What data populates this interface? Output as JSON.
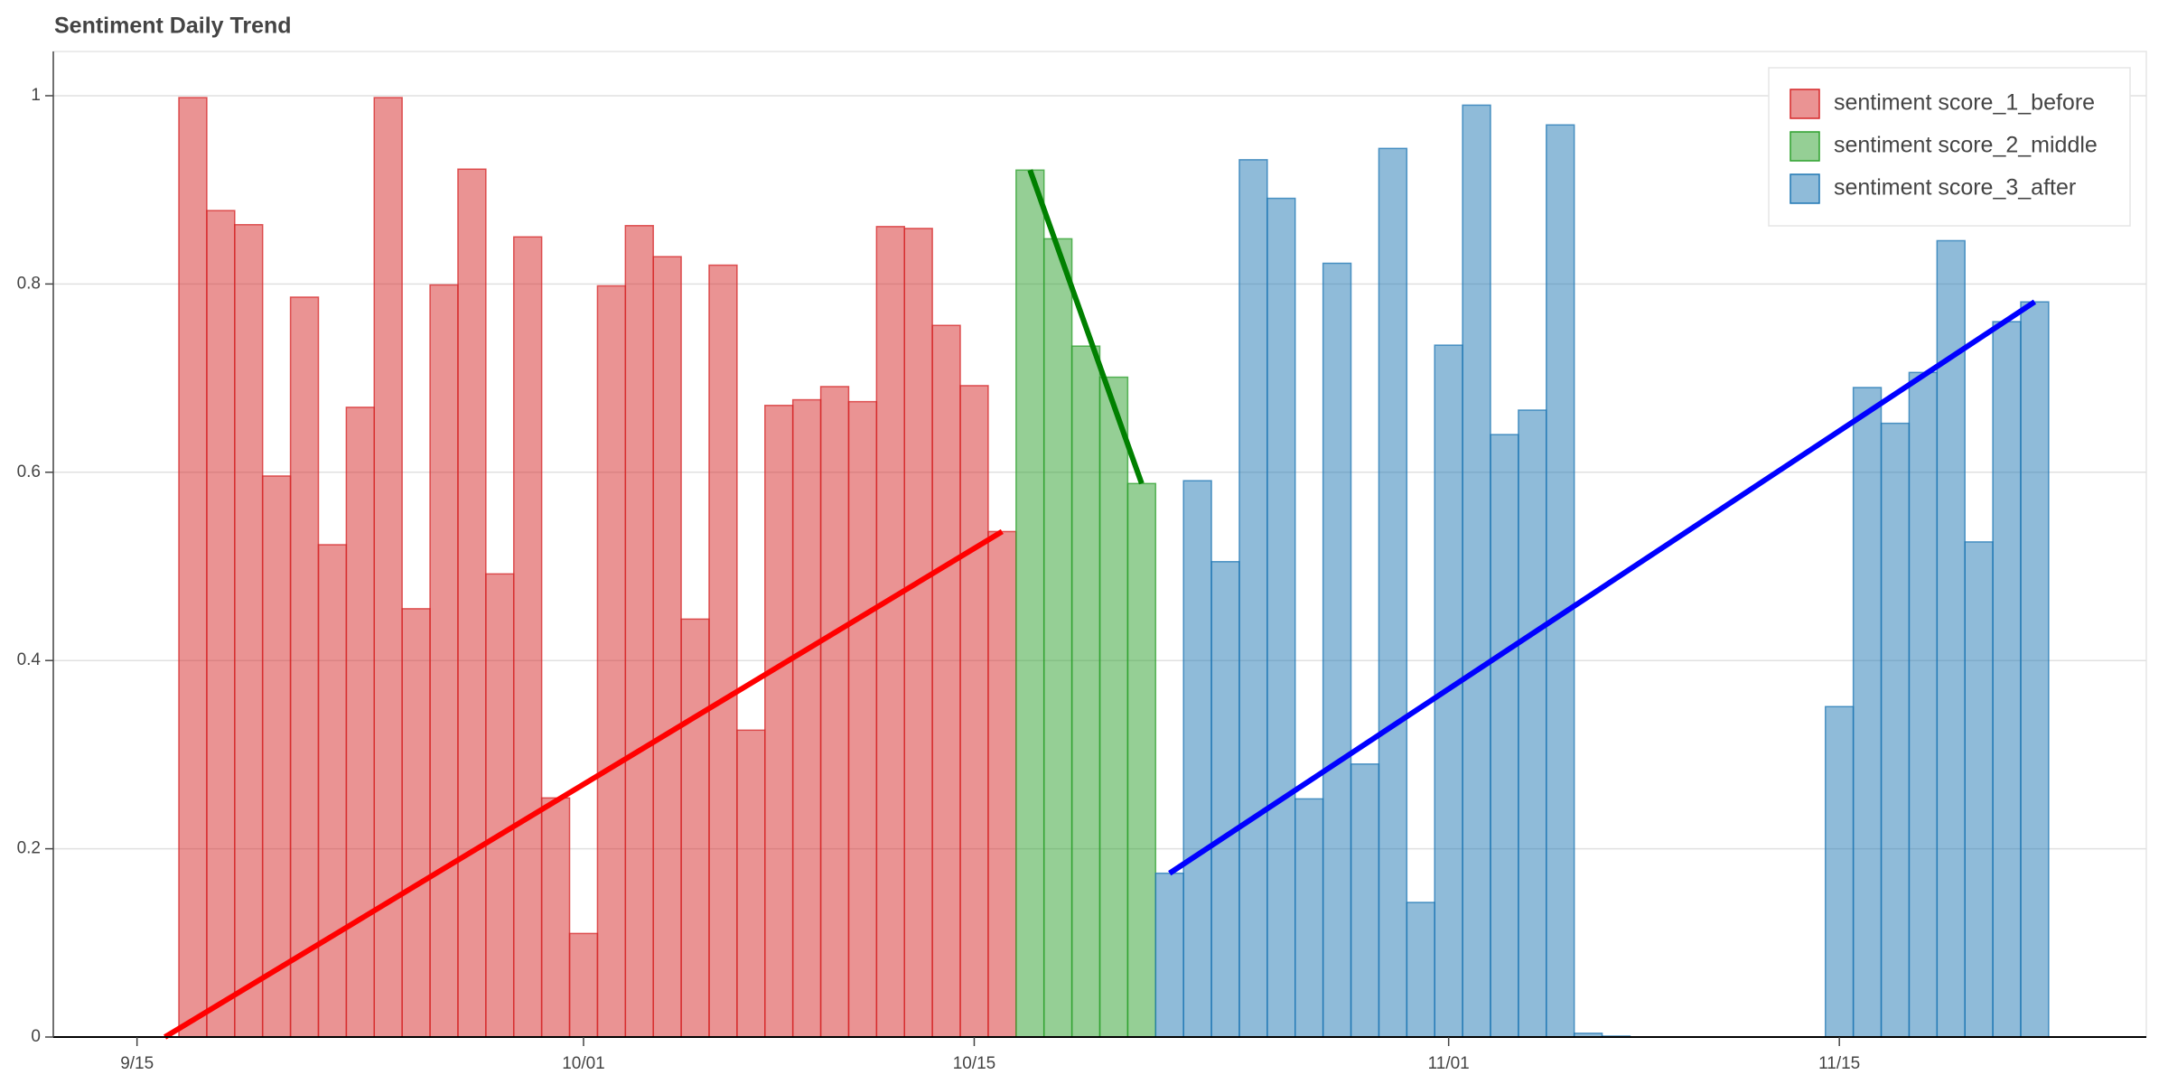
{
  "chart_data": {
    "type": "bar",
    "title": "Sentiment Daily Trend",
    "xlim": [
      "09-12",
      "11-26"
    ],
    "xticks": [
      {
        "value": "09-15",
        "label": "9/15"
      },
      {
        "value": "10-01",
        "label": "10/01"
      },
      {
        "value": "10-15",
        "label": "10/15"
      },
      {
        "value": "11-01",
        "label": "11/01"
      },
      {
        "value": "11-15",
        "label": "11/15"
      }
    ],
    "ylim": [
      0,
      1.047
    ],
    "yticks": [
      0,
      0.2,
      0.4,
      0.6,
      0.8,
      1
    ],
    "grid": true,
    "legend": "top-right",
    "series": [
      {
        "name": "sentiment score_1_before",
        "color": "#d62728",
        "x": [
          "09-17",
          "09-18",
          "09-19",
          "09-20",
          "09-21",
          "09-22",
          "09-23",
          "09-24",
          "09-25",
          "09-26",
          "09-27",
          "09-28",
          "09-29",
          "09-30",
          "10-01",
          "10-02",
          "10-03",
          "10-04",
          "10-05",
          "10-06",
          "10-07",
          "10-08",
          "10-09",
          "10-10",
          "10-11",
          "10-12",
          "10-13",
          "10-14",
          "10-15",
          "10-16"
        ],
        "values": [
          0.998,
          0.878,
          0.863,
          0.596,
          0.786,
          0.523,
          0.669,
          0.998,
          0.455,
          0.799,
          0.922,
          0.492,
          0.85,
          0.254,
          0.11,
          0.798,
          0.862,
          0.829,
          0.444,
          0.82,
          0.326,
          0.671,
          0.677,
          0.691,
          0.675,
          0.861,
          0.859,
          0.756,
          0.692,
          0.537
        ],
        "trend": {
          "x": [
            "09-16",
            "10-16"
          ],
          "values": [
            0.0,
            0.537
          ],
          "color": "#ff0000"
        }
      },
      {
        "name": "sentiment score_2_middle",
        "color": "#2ca02c",
        "x": [
          "10-17",
          "10-18",
          "10-19",
          "10-20",
          "10-21"
        ],
        "values": [
          0.921,
          0.848,
          0.734,
          0.701,
          0.588
        ],
        "trend": {
          "x": [
            "10-17",
            "10-21"
          ],
          "values": [
            0.921,
            0.588
          ],
          "color": "#008000"
        }
      },
      {
        "name": "sentiment score_3_after",
        "color": "#1f77b4",
        "x": [
          "10-22",
          "10-23",
          "10-24",
          "10-25",
          "10-26",
          "10-27",
          "10-28",
          "10-29",
          "10-30",
          "10-31",
          "11-01",
          "11-02",
          "11-03",
          "11-04",
          "11-05",
          "11-06",
          "11-07",
          "11-15",
          "11-16",
          "11-17",
          "11-18",
          "11-19",
          "11-20",
          "11-21",
          "11-22"
        ],
        "values": [
          0.174,
          0.591,
          0.505,
          0.932,
          0.891,
          0.253,
          0.822,
          0.29,
          0.944,
          0.143,
          0.735,
          0.99,
          0.64,
          0.666,
          0.969,
          0.004,
          0.001,
          0.351,
          0.69,
          0.652,
          0.706,
          0.846,
          0.526,
          0.76,
          0.781
        ],
        "trend": {
          "x": [
            "10-22",
            "11-22"
          ],
          "values": [
            0.174,
            0.781
          ],
          "color": "#0000ff"
        }
      }
    ]
  }
}
